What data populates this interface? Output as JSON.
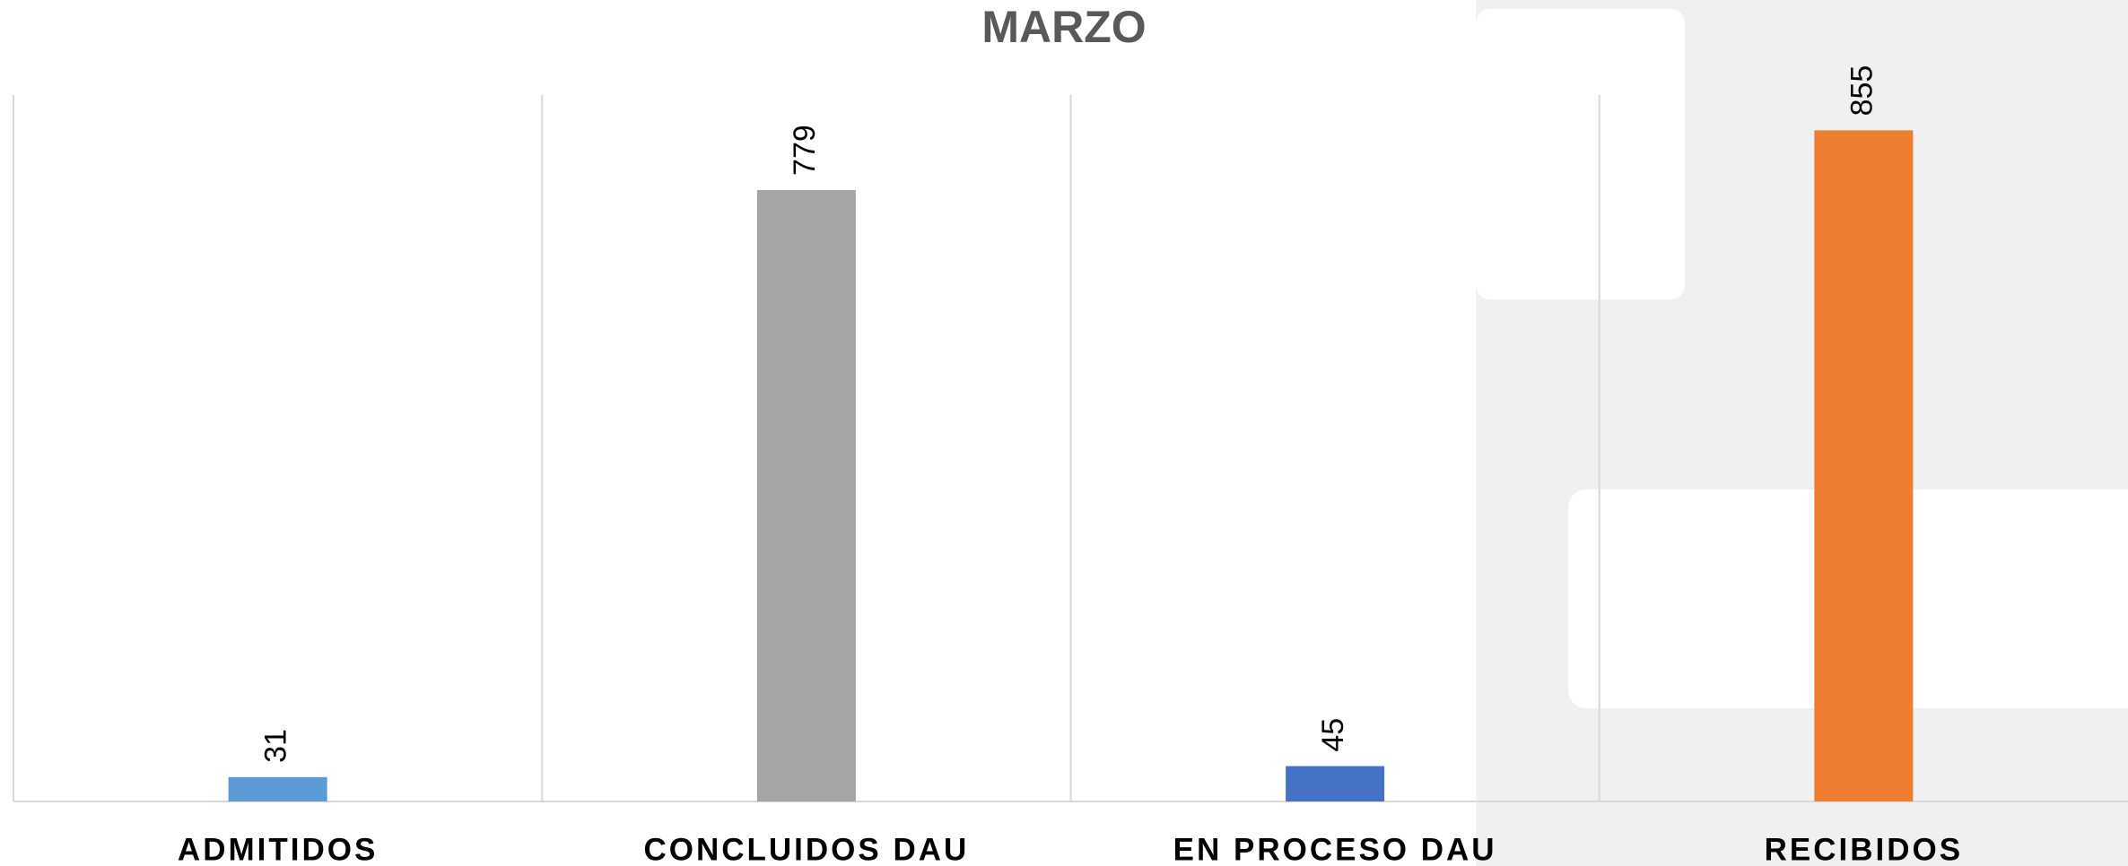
{
  "chart_data": {
    "type": "bar",
    "title": "MARZO",
    "categories": [
      "ADMITIDOS",
      "CONCLUIDOS DAU",
      "EN PROCESO DAU",
      "RECIBIDOS"
    ],
    "values": [
      31,
      779,
      45,
      855
    ],
    "colors": [
      "#5b9bd5",
      "#a5a5a5",
      "#4472c4",
      "#ed7d31"
    ],
    "ylim": [
      0,
      900
    ]
  }
}
